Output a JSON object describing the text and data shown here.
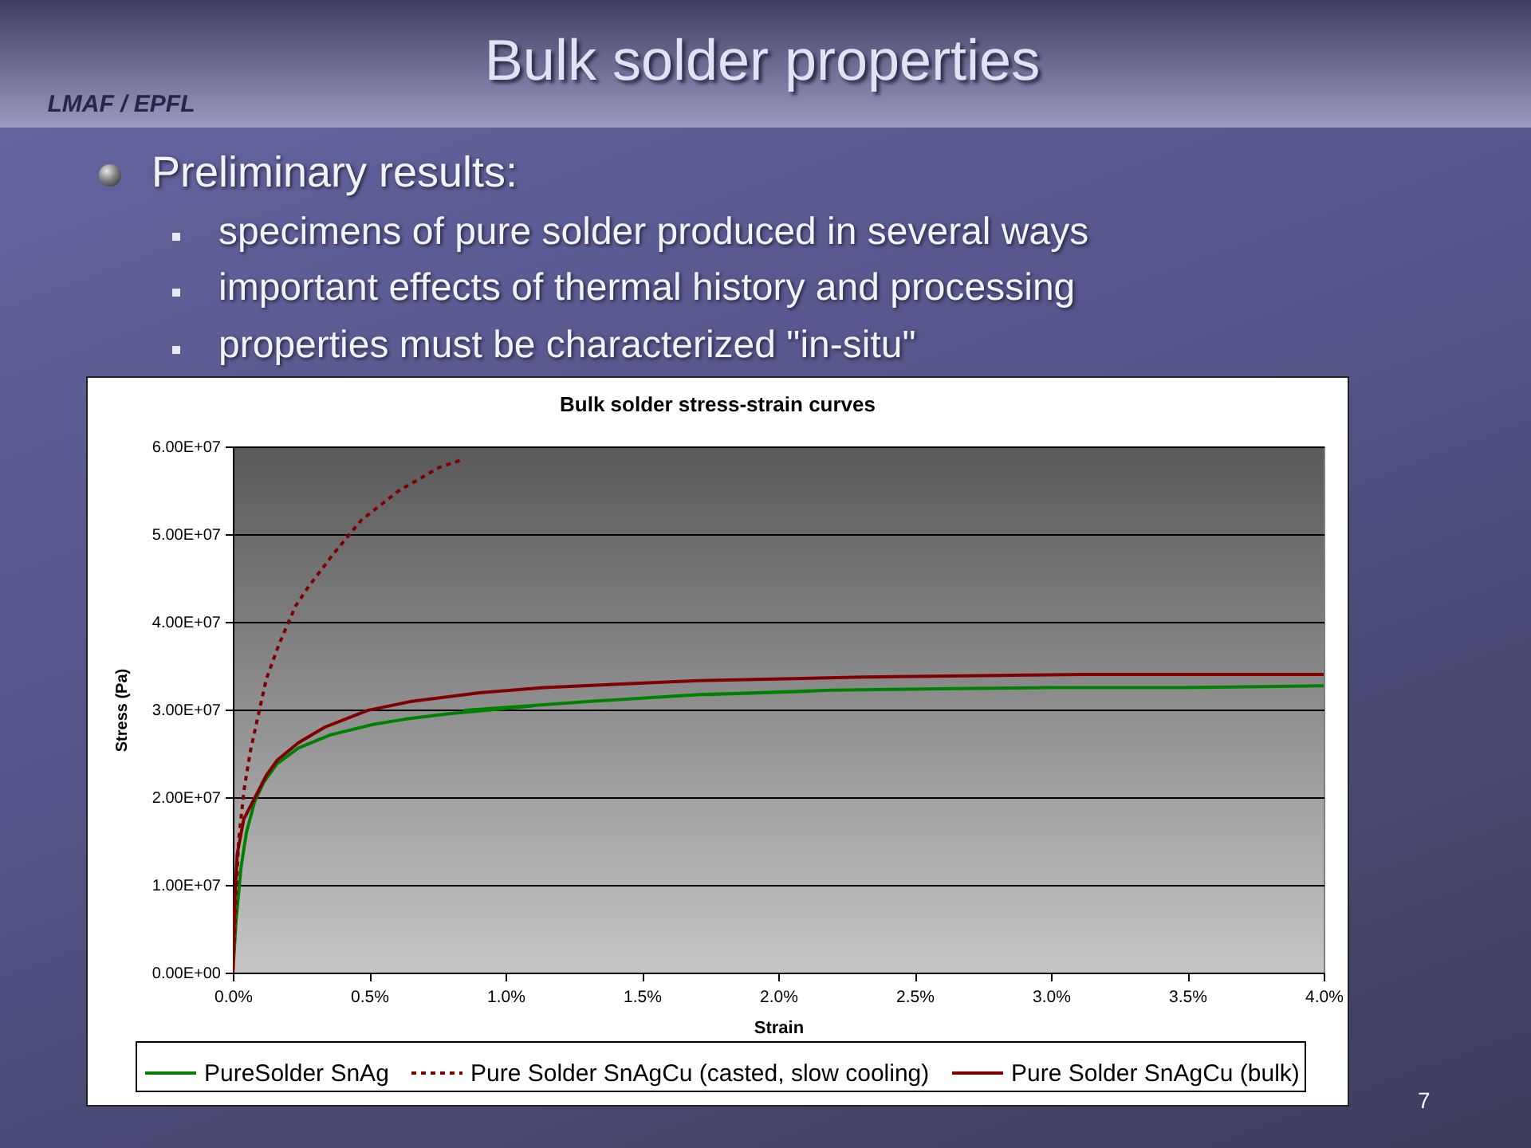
{
  "chart_data": {
    "type": "line",
    "title": "Bulk solder stress-strain curves",
    "xlabel": "Strain",
    "ylabel": "Stress (Pa)",
    "annotations": [
      "Bulk solder properties",
      "LMAF / EPFL",
      "Preliminary results:",
      "specimens of pure solder produced in several ways",
      "important effects of thermal history and processing",
      "properties must be characterized \"in-situ\"",
      "7"
    ],
    "xlim": [
      0,
      4
    ],
    "xticks": [
      {
        "value": 0,
        "label": "0.0%"
      },
      {
        "value": 0.5,
        "label": "0.5%"
      },
      {
        "value": 1,
        "label": "1.0%"
      },
      {
        "value": 1.5,
        "label": "1.5%"
      },
      {
        "value": 2,
        "label": "2.0%"
      },
      {
        "value": 2.5,
        "label": "2.5%"
      },
      {
        "value": 3,
        "label": "3.0%"
      },
      {
        "value": 3.5,
        "label": "3.5%"
      },
      {
        "value": 4,
        "label": "4.0%"
      }
    ],
    "ylim": [
      0,
      60000000
    ],
    "yticks": [
      {
        "value": 0,
        "label": "0.00E+00"
      },
      {
        "value": 10000000,
        "label": "1.00E+07"
      },
      {
        "value": 20000000,
        "label": "2.00E+07"
      },
      {
        "value": 30000000,
        "label": "3.00E+07"
      },
      {
        "value": 40000000,
        "label": "4.00E+07"
      },
      {
        "value": 50000000,
        "label": "5.00E+07"
      },
      {
        "value": 60000000,
        "label": "6.00E+07"
      }
    ],
    "grid": "y",
    "legend": "bottom",
    "series": [
      {
        "name": "PureSolder SnAg",
        "color": "#008000",
        "line_style": "solid",
        "x": [
          0,
          0.012,
          0.03,
          0.05,
          0.08,
          0.113,
          0.162,
          0.24,
          0.357,
          0.514,
          0.631,
          0.787,
          1.1,
          0.85,
          1.12,
          1.3,
          1.5,
          1.71,
          2.12,
          1.74,
          2.19,
          2.71,
          3,
          3.48,
          4
        ],
        "values": [
          0,
          6000000,
          12000000,
          16000000,
          19500000,
          21700000,
          23800000,
          25600000,
          27100000,
          28300000,
          28900000,
          29500000,
          30400000,
          29900000,
          30500000,
          30900000,
          31300000,
          31700000,
          32100000,
          31700000,
          32200000,
          32400000,
          32500000,
          32500000,
          32700000
        ]
      },
      {
        "name": "Pure Solder SnAgCu (casted, slow cooling)",
        "color": "#800000",
        "line_style": "dashed",
        "x": [
          0,
          0.021,
          0.041,
          0.064,
          0.092,
          0.123,
          0.17,
          0.23,
          0.275,
          0.365,
          0.471,
          0.611,
          0.756,
          0.832
        ],
        "values": [
          0,
          15000000,
          20800000,
          25200000,
          29200000,
          33500000,
          37500000,
          41800000,
          43900000,
          47600000,
          51600000,
          55000000,
          57600000,
          58400000
        ]
      },
      {
        "name": "Pure Solder SnAgCu (bulk)",
        "color": "#800000",
        "line_style": "solid",
        "x": [
          0,
          0.006,
          0.016,
          0.04,
          0.09,
          0.123,
          0.162,
          0.24,
          0.338,
          0.436,
          0.494,
          0.65,
          0.904,
          1.139,
          1.707,
          2.312,
          3.119,
          4
        ],
        "values": [
          0,
          7400000,
          13500000,
          17500000,
          20500000,
          22500000,
          24200000,
          26200000,
          28000000,
          29200000,
          29900000,
          30900000,
          31900000,
          32500000,
          33300000,
          33700000,
          34000000,
          34000000
        ]
      }
    ]
  }
}
